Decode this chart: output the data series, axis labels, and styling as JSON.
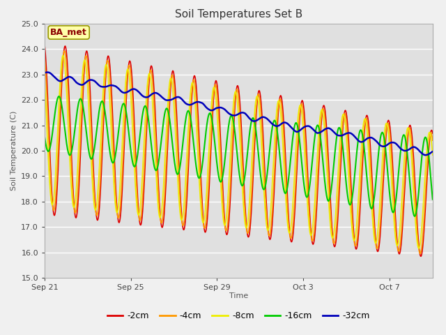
{
  "title": "Soil Temperatures Set B",
  "xlabel": "Time",
  "ylabel": "Soil Temperature (C)",
  "ylim": [
    15.0,
    25.0
  ],
  "yticks": [
    15.0,
    16.0,
    17.0,
    18.0,
    19.0,
    20.0,
    21.0,
    22.0,
    23.0,
    24.0,
    25.0
  ],
  "annotation": "BA_met",
  "fig_facecolor": "#f0f0f0",
  "ax_facecolor": "#e0e0e0",
  "grid_color": "#ffffff",
  "series": [
    {
      "label": "-2cm",
      "color": "#dd0000"
    },
    {
      "label": "-4cm",
      "color": "#ff9900"
    },
    {
      "label": "-8cm",
      "color": "#eeee00"
    },
    {
      "label": "-16cm",
      "color": "#00cc00"
    },
    {
      "label": "-32cm",
      "color": "#0000bb"
    }
  ],
  "n_days": 18,
  "samples_per_day": 48,
  "xtick_dates": [
    "Sep 21",
    "Sep 25",
    "Sep 29",
    "Oct 3",
    "Oct 7"
  ],
  "xtick_day_offsets": [
    0,
    4,
    8,
    12,
    16
  ]
}
